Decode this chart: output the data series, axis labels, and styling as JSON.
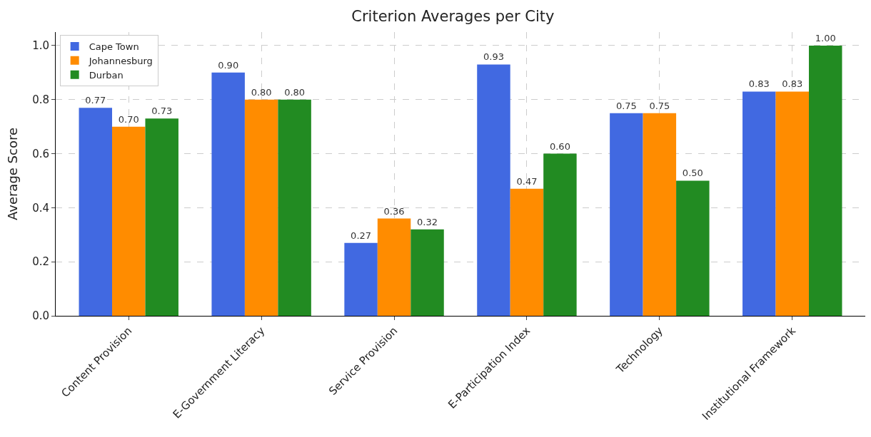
{
  "chart_data": {
    "type": "bar",
    "title": "Criterion Averages per City",
    "ylabel": "Average Score",
    "categories": [
      "Content Provision",
      "E-Government Literacy",
      "Service Provision",
      "E-Participation Index",
      "Technology",
      "Institutional Framework"
    ],
    "series": [
      {
        "name": "Cape Town",
        "color": "#4169e1",
        "values": [
          0.77,
          0.9,
          0.27,
          0.93,
          0.75,
          0.83
        ],
        "value_labels": [
          "0.77",
          "0.90",
          "0.27",
          "0.93",
          "0.75",
          "0.83"
        ]
      },
      {
        "name": "Johannesburg",
        "color": "#ff8c00",
        "values": [
          0.7,
          0.8,
          0.36,
          0.47,
          0.75,
          0.83
        ],
        "value_labels": [
          "0.70",
          "0.80",
          "0.36",
          "0.47",
          "0.75",
          "0.83"
        ]
      },
      {
        "name": "Durban",
        "color": "#228b22",
        "values": [
          0.73,
          0.8,
          0.32,
          0.6,
          0.5,
          1.0
        ],
        "value_labels": [
          "0.73",
          "0.80",
          "0.32",
          "0.60",
          "0.50",
          "1.00"
        ]
      }
    ],
    "ylim": [
      0,
      1.05
    ],
    "yticks": [
      {
        "value": 0,
        "label": "0.0"
      },
      {
        "value": 0.2,
        "label": "0.2"
      },
      {
        "value": 0.4,
        "label": "0.4"
      },
      {
        "value": 0.6,
        "label": "0.6"
      },
      {
        "value": 0.8,
        "label": "0.8"
      },
      {
        "value": 1,
        "label": "1.0"
      }
    ],
    "grid": true,
    "legend": "top left"
  }
}
